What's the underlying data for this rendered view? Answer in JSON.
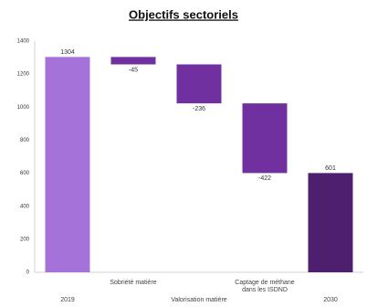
{
  "chart_data": {
    "type": "waterfall",
    "title": "Objectifs sectoriels",
    "categories": [
      "2019",
      "Sobriété matière",
      "Valorisation matière",
      "Captage de méthane dans les ISDND",
      "2030"
    ],
    "values": [
      1304,
      -45,
      -236,
      -422,
      601
    ],
    "totals": [
      true,
      false,
      false,
      false,
      true
    ],
    "colors": [
      "#a472d9",
      "#7030a0",
      "#7030a0",
      "#7030a0",
      "#4e1f6e"
    ],
    "ylim": [
      0,
      1400
    ],
    "yticks": [
      0,
      200,
      400,
      600,
      800,
      1000,
      1200,
      1400
    ],
    "grid": false
  }
}
